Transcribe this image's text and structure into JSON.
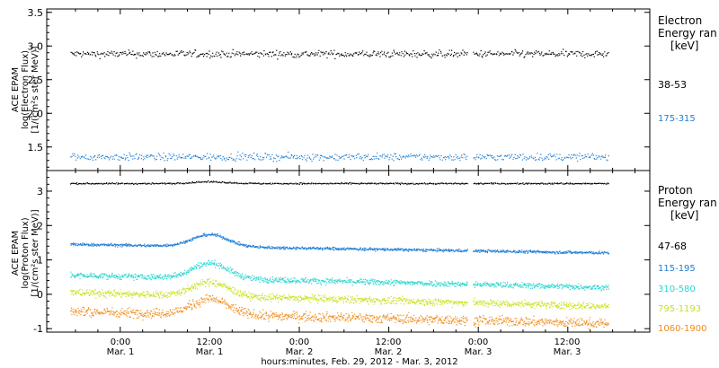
{
  "chart_data": [
    {
      "type": "scatter",
      "id": "electron",
      "ylabel_lines": [
        "ACE EPAM",
        "log(Electron Flux)",
        "[1/(cm²s ster MeV)]"
      ],
      "ylim": [
        1.15,
        3.55
      ],
      "yticks": [
        1.5,
        2.0,
        2.5,
        3.0,
        3.5
      ],
      "ytick_labels": [
        "1.5",
        "2.0",
        "2.5",
        "3.0",
        "3.5"
      ],
      "legend_title_lines": [
        "Electron",
        "Energy ran",
        "[keV]"
      ],
      "series": [
        {
          "name": "38-53",
          "color": "#000000",
          "level": 2.88,
          "noise": 0.05
        },
        {
          "name": "175-315",
          "color": "#1f7fd6",
          "level": 1.35,
          "noise": 0.05
        }
      ]
    },
    {
      "type": "scatter",
      "id": "proton",
      "ylabel_lines": [
        "ACE EPAM",
        "log(Proton Flux)",
        "[1/(cm²s ster MeV)]"
      ],
      "ylim": [
        -1.1,
        3.6
      ],
      "yticks": [
        -1,
        0,
        1,
        2,
        3
      ],
      "ytick_labels": [
        "-1",
        "0",
        "1",
        "2",
        "3"
      ],
      "legend_title_lines": [
        "Proton",
        "Energy ran",
        "[keV]"
      ],
      "series": [
        {
          "name": "47-68",
          "color": "#000000",
          "level": 3.22,
          "noise": 0.02
        },
        {
          "name": "115-195",
          "color": "#1f7fd6",
          "level": 1.45,
          "noise": 0.04
        },
        {
          "name": "310-580",
          "color": "#29d6cf",
          "level": 0.55,
          "noise": 0.08
        },
        {
          "name": "795-1193",
          "color": "#c9e01c",
          "level": 0.05,
          "noise": 0.1
        },
        {
          "name": "1060-1900",
          "color": "#f08c1a",
          "level": -0.5,
          "noise": 0.13
        }
      ]
    }
  ],
  "x_axis": {
    "ticks": [
      {
        "line1": "0:00",
        "line2": "Mar. 1"
      },
      {
        "line1": "12:00",
        "line2": "Mar. 1"
      },
      {
        "line1": "0:00",
        "line2": "Mar. 2"
      },
      {
        "line1": "12:00",
        "line2": "Mar. 2"
      },
      {
        "line1": "0:00",
        "line2": "Mar. 3"
      },
      {
        "line1": "12:00",
        "line2": "Mar. 3"
      }
    ],
    "title": "hours:minutes, Feb. 29, 2012 - Mar.  3, 2012"
  }
}
